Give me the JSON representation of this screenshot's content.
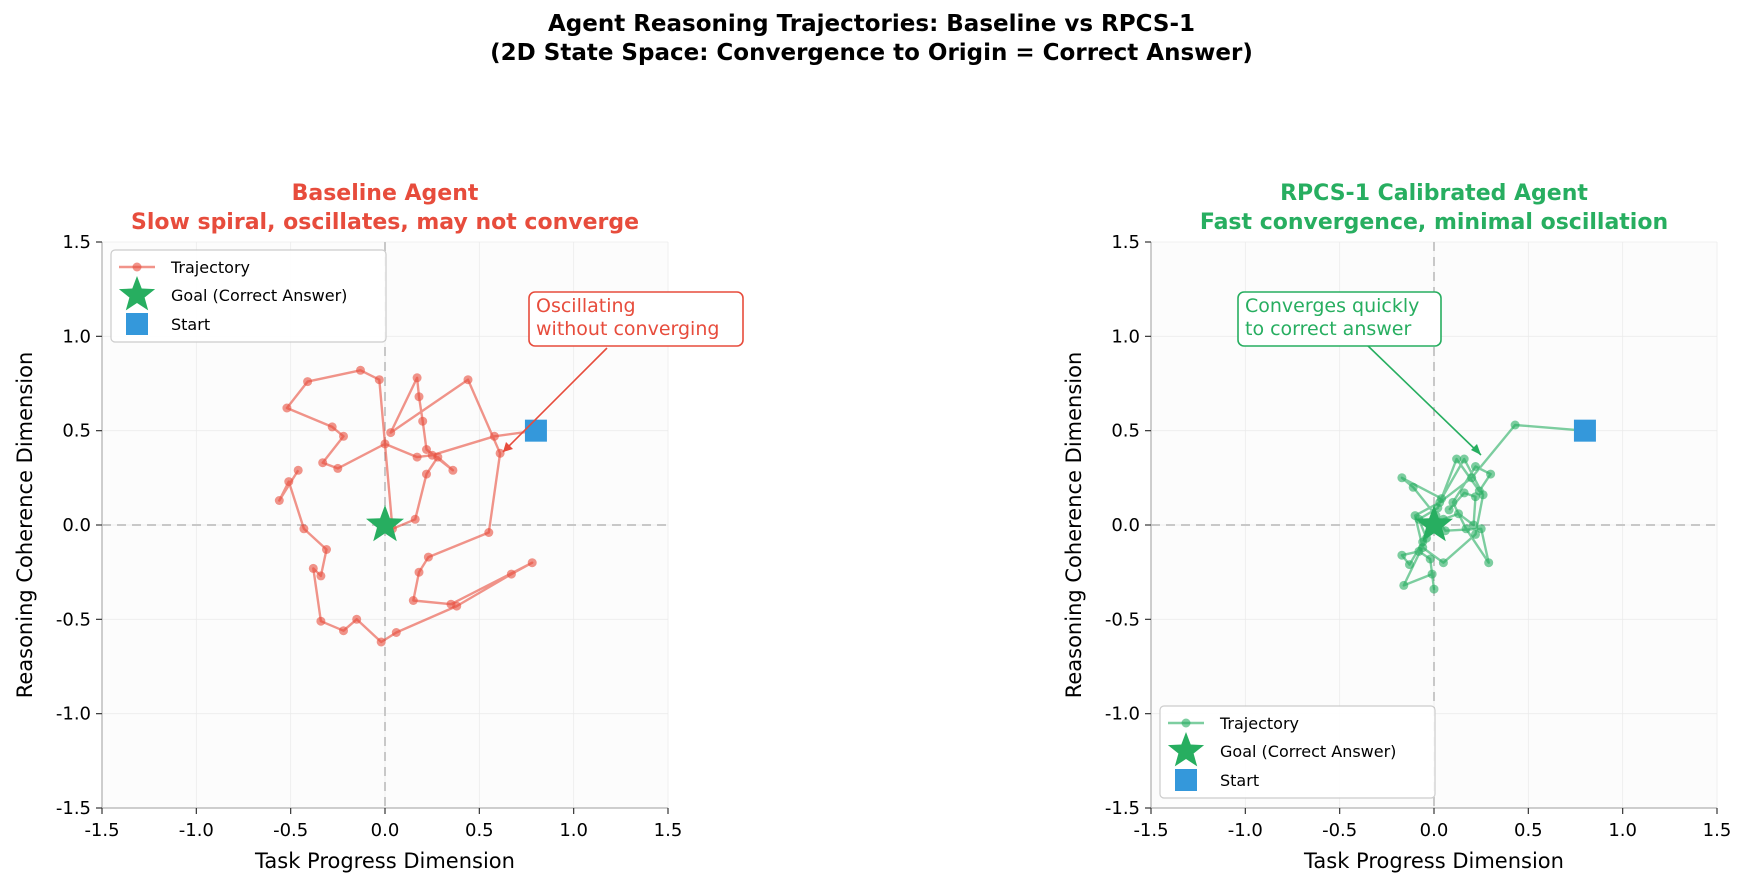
{
  "figure": {
    "title_line1": "Agent Reasoning Trajectories: Baseline vs RPCS-1",
    "title_line2": "(2D State Space: Convergence to Origin = Correct Answer)"
  },
  "colors": {
    "baseline": "#e74c3c",
    "calibrated": "#27ae60",
    "start": "#3498db",
    "goal": "#27ae60"
  },
  "chart_data": [
    {
      "type": "line",
      "title_line1": "Baseline Agent",
      "title_line2": "Slow spiral, oscillates, may not converge",
      "title_color": "#e74c3c",
      "xlabel": "Task Progress Dimension",
      "ylabel": "Reasoning Coherence Dimension",
      "xlim": [
        -1.5,
        1.5
      ],
      "ylim": [
        -1.5,
        1.5
      ],
      "xticks": [
        "-1.5",
        "-1.0",
        "-0.5",
        "0.0",
        "0.5",
        "1.0",
        "1.5"
      ],
      "yticks": [
        "-1.5",
        "-1.0",
        "-0.5",
        "0.0",
        "0.5",
        "1.0",
        "1.5"
      ],
      "grid": true,
      "legend_position": "upper-left",
      "legend": [
        "Trajectory",
        "Goal (Correct Answer)",
        "Start"
      ],
      "series": [
        {
          "name": "Trajectory",
          "color": "#e74c3c",
          "points": [
            [
              0.8,
              0.5
            ],
            [
              0.58,
              0.47
            ],
            [
              0.25,
              0.37
            ],
            [
              0.17,
              0.36
            ],
            [
              0.0,
              0.43
            ],
            [
              -0.25,
              0.3
            ],
            [
              -0.33,
              0.33
            ],
            [
              -0.22,
              0.47
            ],
            [
              -0.28,
              0.52
            ],
            [
              -0.52,
              0.62
            ],
            [
              -0.41,
              0.76
            ],
            [
              -0.13,
              0.82
            ],
            [
              -0.03,
              0.77
            ],
            [
              0.04,
              -0.02
            ],
            [
              0.16,
              0.03
            ],
            [
              0.22,
              0.27
            ],
            [
              0.28,
              0.36
            ],
            [
              0.36,
              0.29
            ],
            [
              0.22,
              0.4
            ],
            [
              0.2,
              0.55
            ],
            [
              0.18,
              0.68
            ],
            [
              0.17,
              0.78
            ],
            [
              0.03,
              0.49
            ],
            [
              0.44,
              0.77
            ],
            [
              0.61,
              0.38
            ],
            [
              0.55,
              -0.04
            ],
            [
              0.23,
              -0.17
            ],
            [
              0.18,
              -0.25
            ],
            [
              0.15,
              -0.4
            ],
            [
              0.35,
              -0.42
            ],
            [
              0.78,
              -0.2
            ],
            [
              0.67,
              -0.26
            ],
            [
              0.38,
              -0.43
            ],
            [
              0.06,
              -0.57
            ],
            [
              -0.02,
              -0.62
            ],
            [
              -0.15,
              -0.5
            ],
            [
              -0.22,
              -0.56
            ],
            [
              -0.34,
              -0.51
            ],
            [
              -0.38,
              -0.23
            ],
            [
              -0.34,
              -0.27
            ],
            [
              -0.31,
              -0.13
            ],
            [
              -0.43,
              -0.02
            ],
            [
              -0.51,
              0.23
            ],
            [
              -0.56,
              0.13
            ],
            [
              -0.46,
              0.29
            ]
          ]
        },
        {
          "name": "Goal (Correct Answer)",
          "color": "#27ae60",
          "points": [
            [
              0.0,
              0.0
            ]
          ]
        },
        {
          "name": "Start",
          "color": "#3498db",
          "points": [
            [
              0.8,
              0.5
            ]
          ]
        }
      ],
      "annotation": {
        "line1": "Oscillating",
        "line2": "without converging",
        "color": "#e74c3c",
        "arrow_to": [
          0.62,
          0.38
        ]
      }
    },
    {
      "type": "line",
      "title_line1": "RPCS-1 Calibrated Agent",
      "title_line2": "Fast convergence, minimal oscillation",
      "title_color": "#27ae60",
      "xlabel": "Task Progress Dimension",
      "ylabel": "Reasoning Coherence Dimension",
      "xlim": [
        -1.5,
        1.5
      ],
      "ylim": [
        -1.5,
        1.5
      ],
      "xticks": [
        "-1.5",
        "-1.0",
        "-0.5",
        "0.0",
        "0.5",
        "1.0",
        "1.5"
      ],
      "yticks": [
        "-1.5",
        "-1.0",
        "-0.5",
        "0.0",
        "0.5",
        "1.0",
        "1.5"
      ],
      "grid": true,
      "legend_position": "lower-left",
      "legend": [
        "Trajectory",
        "Goal (Correct Answer)",
        "Start"
      ],
      "series": [
        {
          "name": "Trajectory",
          "color": "#27ae60",
          "points": [
            [
              0.8,
              0.5
            ],
            [
              0.43,
              0.53
            ],
            [
              0.2,
              0.25
            ],
            [
              0.03,
              0.12
            ],
            [
              -0.1,
              0.05
            ],
            [
              -0.06,
              -0.12
            ],
            [
              0.05,
              -0.2
            ],
            [
              0.22,
              -0.05
            ],
            [
              0.26,
              0.16
            ],
            [
              0.16,
              0.35
            ],
            [
              0.04,
              0.14
            ],
            [
              -0.17,
              0.25
            ],
            [
              -0.11,
              0.2
            ],
            [
              0.01,
              0.05
            ],
            [
              0.06,
              -0.03
            ],
            [
              0.25,
              -0.02
            ],
            [
              0.29,
              -0.2
            ],
            [
              0.17,
              -0.02
            ],
            [
              0.1,
              0.12
            ],
            [
              0.22,
              0.31
            ],
            [
              0.3,
              0.27
            ],
            [
              0.24,
              0.18
            ],
            [
              0.12,
              0.35
            ],
            [
              0.02,
              0.09
            ],
            [
              -0.08,
              0.03
            ],
            [
              -0.04,
              -0.07
            ],
            [
              -0.16,
              -0.32
            ],
            [
              -0.01,
              -0.26
            ],
            [
              0.0,
              -0.34
            ],
            [
              -0.02,
              -0.18
            ],
            [
              -0.08,
              -0.14
            ],
            [
              -0.17,
              -0.16
            ],
            [
              -0.13,
              -0.21
            ],
            [
              -0.06,
              -0.09
            ],
            [
              0.05,
              0.03
            ],
            [
              0.13,
              0.06
            ],
            [
              0.21,
              0.0
            ],
            [
              0.22,
              0.15
            ],
            [
              0.16,
              0.17
            ],
            [
              0.08,
              0.08
            ]
          ]
        },
        {
          "name": "Goal (Correct Answer)",
          "color": "#27ae60",
          "points": [
            [
              0.0,
              0.0
            ]
          ]
        },
        {
          "name": "Start",
          "color": "#3498db",
          "points": [
            [
              0.8,
              0.5
            ]
          ]
        }
      ],
      "annotation": {
        "line1": "Converges quickly",
        "line2": "to correct answer",
        "color": "#27ae60",
        "arrow_to": [
          0.25,
          0.21
        ]
      }
    }
  ]
}
